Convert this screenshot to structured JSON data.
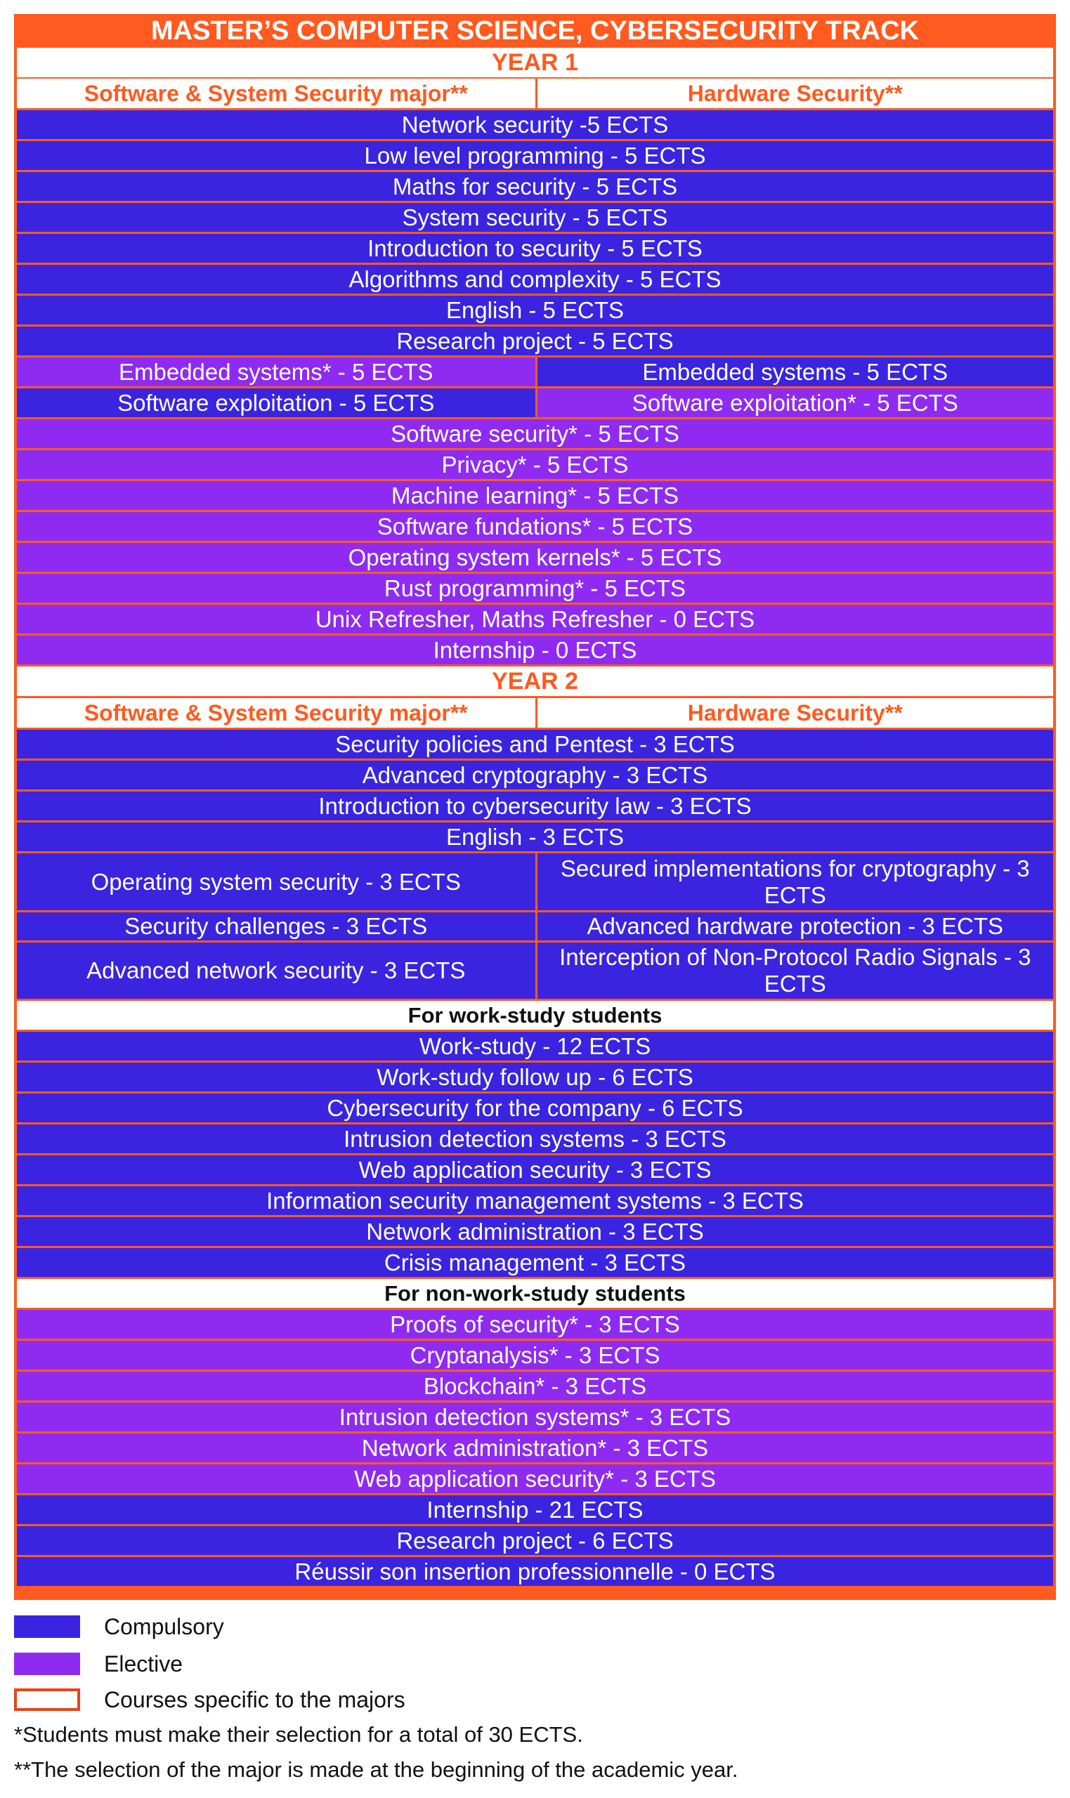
{
  "title": "MASTER’S COMPUTER SCIENCE, CYBERSECURITY TRACK",
  "colors": {
    "compulsory": "#3a24e0",
    "elective": "#8f2bf0",
    "accent": "#ff5a1f"
  },
  "year1": {
    "label": "YEAR 1",
    "major_left": "Software & System Security major**",
    "major_right": "Hardware Security**",
    "common": [
      "Network security -5 ECTS",
      "Low level programming - 5 ECTS",
      "Maths for security - 5 ECTS",
      "System security - 5 ECTS",
      "Introduction to security - 5 ECTS",
      "Algorithms and complexity - 5 ECTS",
      "English - 5 ECTS",
      "Research project - 5 ECTS"
    ],
    "split": [
      {
        "left": "Embedded systems* - 5 ECTS",
        "right": "Embedded systems - 5 ECTS"
      },
      {
        "left": "Software exploitation - 5 ECTS",
        "right": "Software exploitation* - 5 ECTS"
      }
    ],
    "electives": [
      "Software security* - 5 ECTS",
      "Privacy* - 5 ECTS",
      "Machine learning* - 5 ECTS",
      "Software fundations* - 5 ECTS",
      "Operating system kernels* - 5 ECTS",
      "Rust programming* - 5 ECTS",
      "Unix Refresher, Maths Refresher - 0 ECTS",
      "Internship - 0 ECTS"
    ]
  },
  "year2": {
    "label": "YEAR 2",
    "major_left": "Software & System Security major**",
    "major_right": "Hardware Security**",
    "common": [
      "Security policies and Pentest - 3 ECTS",
      "Advanced cryptography - 3 ECTS",
      "Introduction to cybersecurity law - 3 ECTS",
      "English - 3 ECTS"
    ],
    "split": [
      {
        "left": "Operating system security - 3 ECTS",
        "right": "Secured implementations for cryptography - 3 ECTS"
      },
      {
        "left": "Security challenges - 3 ECTS",
        "right": "Advanced hardware protection - 3 ECTS"
      },
      {
        "left": "Advanced network security - 3 ECTS",
        "right": "Interception of Non-Protocol Radio Signals - 3 ECTS"
      }
    ],
    "work_study_label": "For work-study students",
    "work_study": [
      "Work-study - 12 ECTS",
      "Work-study follow up - 6 ECTS",
      "Cybersecurity for the company - 6 ECTS",
      "Intrusion detection systems - 3 ECTS",
      "Web application security - 3 ECTS",
      "Information security management systems - 3 ECTS",
      "Network administration - 3 ECTS",
      "Crisis management - 3 ECTS"
    ],
    "non_work_study_label": "For non-work-study students",
    "non_work_study": [
      "Proofs of security* - 3 ECTS",
      "Cryptanalysis* - 3 ECTS",
      "Blockchain* - 3 ECTS",
      "Intrusion detection systems* - 3 ECTS",
      "Network administration* - 3 ECTS",
      "Web application security* - 3 ECTS"
    ],
    "final": [
      "Internship - 21 ECTS",
      "Research project - 6 ECTS",
      "Réussir son insertion professionnelle - 0 ECTS"
    ]
  },
  "legend": {
    "compulsory": "Compulsory",
    "elective": "Elective",
    "specific": "Courses specific to the majors"
  },
  "notes": {
    "note1": "*Students must make their selection for a total of 30 ECTS.",
    "note2": "**The selection of the major is made at the beginning of the academic year."
  }
}
